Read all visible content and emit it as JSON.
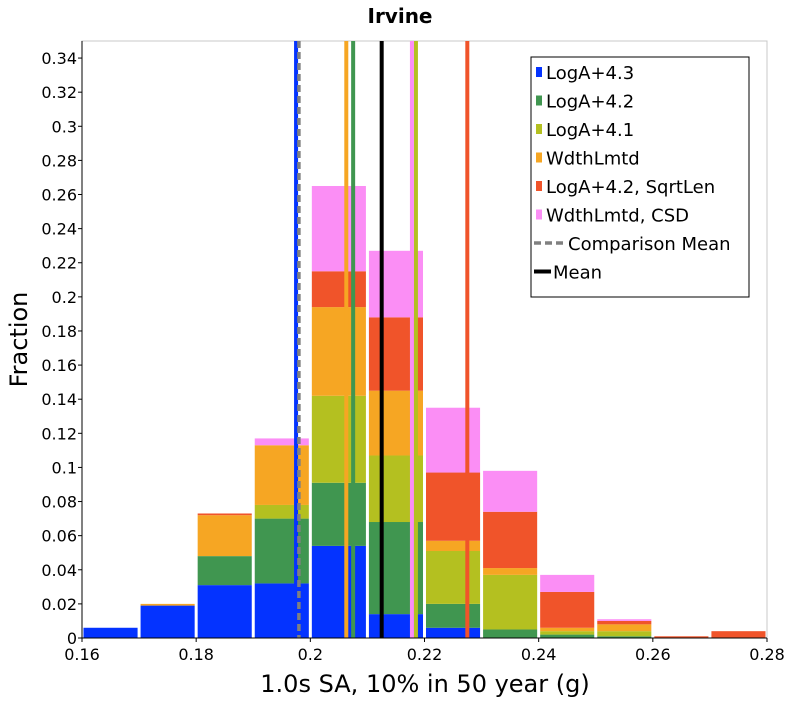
{
  "chart_data": {
    "type": "bar",
    "title": "Irvine",
    "xlabel": "1.0s SA, 10% in 50 year (g)",
    "ylabel": "Fraction",
    "xlim": [
      0.16,
      0.28
    ],
    "ylim": [
      0,
      0.35
    ],
    "x_ticks": [
      0.16,
      0.18,
      0.2,
      0.22,
      0.24,
      0.26,
      0.28
    ],
    "x_tick_labels": [
      "0.16",
      "0.18",
      "0.2",
      "0.22",
      "0.24",
      "0.26",
      "0.28"
    ],
    "y_ticks": [
      0,
      0.02,
      0.04,
      0.06,
      0.08,
      0.1,
      0.12,
      0.14,
      0.16,
      0.18,
      0.2,
      0.22,
      0.24,
      0.26,
      0.28,
      0.3,
      0.32,
      0.34
    ],
    "y_tick_labels": [
      "0",
      "0.02",
      "0.04",
      "0.06",
      "0.08",
      "0.1",
      "0.12",
      "0.14",
      "0.16",
      "0.18",
      "0.2",
      "0.22",
      "0.24",
      "0.26",
      "0.28",
      "0.3",
      "0.32",
      "0.34"
    ],
    "bin_width": 0.01,
    "bins": [
      0.16,
      0.17,
      0.18,
      0.19,
      0.2,
      0.21,
      0.22,
      0.23,
      0.24,
      0.25,
      0.26,
      0.27
    ],
    "stacked": true,
    "grid": false,
    "legend_position": "top-right",
    "series": [
      {
        "name": "LogA+4.3",
        "color": "#0433ff",
        "values": [
          0.006,
          0.019,
          0.031,
          0.032,
          0.054,
          0.014,
          0.006,
          0,
          0,
          0,
          0,
          0
        ]
      },
      {
        "name": "LogA+4.2",
        "color": "#409650",
        "values": [
          0,
          0,
          0.017,
          0.038,
          0.037,
          0.054,
          0.014,
          0.005,
          0.002,
          0.001,
          0,
          0
        ]
      },
      {
        "name": "LogA+4.1",
        "color": "#b4c020",
        "values": [
          0,
          0,
          0,
          0.008,
          0.051,
          0.039,
          0.031,
          0.032,
          0.002,
          0.003,
          0,
          0
        ]
      },
      {
        "name": "WdthLmtd",
        "color": "#f6a623",
        "values": [
          0,
          0.001,
          0.024,
          0.035,
          0.052,
          0.038,
          0.006,
          0.004,
          0.002,
          0.004,
          0,
          0
        ]
      },
      {
        "name": "LogA+4.2, SqrtLen",
        "color": "#f0542a",
        "values": [
          0,
          0,
          0.001,
          0,
          0.021,
          0.043,
          0.04,
          0.033,
          0.021,
          0.002,
          0.001,
          0.004
        ]
      },
      {
        "name": "WdthLmtd, CSD",
        "color": "#fb8ef5",
        "values": [
          0,
          0,
          0,
          0.004,
          0.05,
          0.039,
          0.038,
          0.024,
          0.01,
          0.001,
          0,
          0
        ]
      }
    ],
    "vertical_lines": [
      {
        "series": "LogA+4.3",
        "x": 0.1975,
        "color": "#0433ff",
        "style": "solid"
      },
      {
        "series": "LogA+4.2",
        "x": 0.2075,
        "color": "#409650",
        "style": "solid"
      },
      {
        "series": "LogA+4.1",
        "x": 0.2185,
        "color": "#b4c020",
        "style": "solid"
      },
      {
        "series": "WdthLmtd",
        "x": 0.2063,
        "color": "#f6a623",
        "style": "solid"
      },
      {
        "series": "LogA+4.2, SqrtLen",
        "x": 0.2275,
        "color": "#f0542a",
        "style": "solid"
      },
      {
        "series": "WdthLmtd, CSD",
        "x": 0.2178,
        "color": "#fb8ef5",
        "style": "solid"
      },
      {
        "series": "Comparison Mean",
        "x": 0.198,
        "color": "#808080",
        "style": "dashed"
      },
      {
        "series": "Mean",
        "x": 0.2125,
        "color": "#000000",
        "style": "solid"
      }
    ],
    "legend": [
      {
        "label": "LogA+4.3",
        "color": "#0433ff",
        "kind": "box"
      },
      {
        "label": "LogA+4.2",
        "color": "#409650",
        "kind": "box"
      },
      {
        "label": "LogA+4.1",
        "color": "#b4c020",
        "kind": "box"
      },
      {
        "label": "WdthLmtd",
        "color": "#f6a623",
        "kind": "box"
      },
      {
        "label": "LogA+4.2, SqrtLen",
        "color": "#f0542a",
        "kind": "box"
      },
      {
        "label": "WdthLmtd, CSD",
        "color": "#fb8ef5",
        "kind": "box"
      },
      {
        "label": "Comparison Mean",
        "color": "#808080",
        "kind": "dashed"
      },
      {
        "label": "Mean",
        "color": "#000000",
        "kind": "line"
      }
    ]
  }
}
